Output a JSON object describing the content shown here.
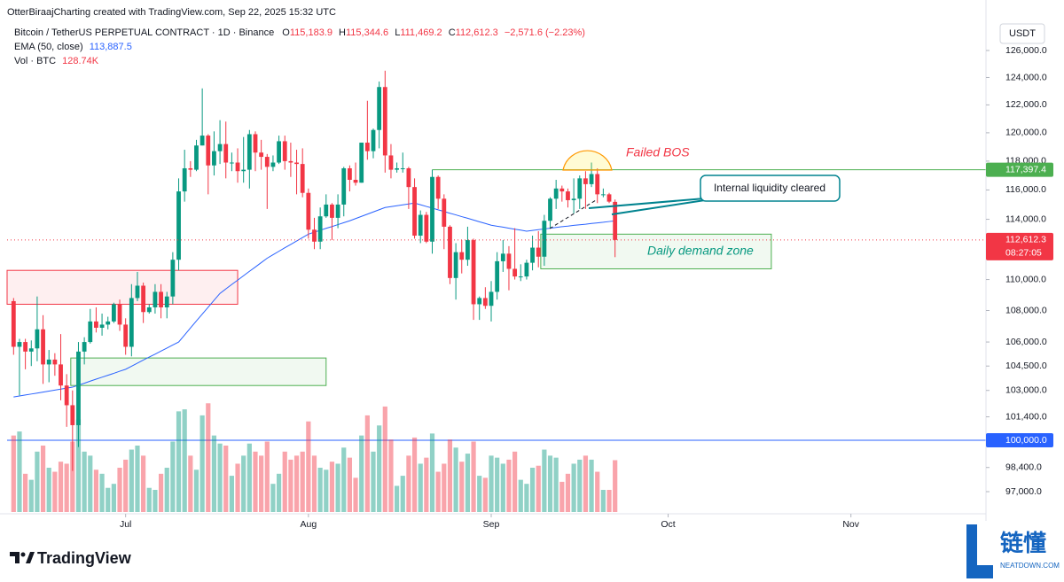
{
  "chart_data": {
    "type": "candlestick",
    "credit": "OtterBiraajCharting created with TradingView.com, Sep 22, 2025 15:32 UTC",
    "title": "Bitcoin / TetherUS PERPETUAL CONTRACT · 1D · Binance",
    "currency": "USDT",
    "legend_ohlc": [
      {
        "key": "O",
        "label": "115,183.9"
      },
      {
        "key": "H",
        "label": "115,344.6"
      },
      {
        "key": "L",
        "label": "111,469.2"
      },
      {
        "key": "C",
        "label": "112,612.3"
      }
    ],
    "change_label": "−2,571.6 (−2.23%)",
    "up_color": "#089981",
    "down_color": "#f23645",
    "log_scale": true,
    "ylim": [
      95735,
      127800
    ],
    "yticks": [
      {
        "value": 126000,
        "label": "126,000.0"
      },
      {
        "value": 124000,
        "label": "124,000.0"
      },
      {
        "value": 122000,
        "label": "122,000.0"
      },
      {
        "value": 120000,
        "label": "120,000.0"
      },
      {
        "value": 118000,
        "label": "118,000.0"
      },
      {
        "value": 116000,
        "label": "116,000.0"
      },
      {
        "value": 114000,
        "label": "114,000.0"
      },
      {
        "value": 110000,
        "label": "110,000.0"
      },
      {
        "value": 108000,
        "label": "108,000.0"
      },
      {
        "value": 106000,
        "label": "106,000.0"
      },
      {
        "value": 104500,
        "label": "104,500.0"
      },
      {
        "value": 103000,
        "label": "103,000.0"
      },
      {
        "value": 101400,
        "label": "101,400.0"
      },
      {
        "value": 98400,
        "label": "98,400.0"
      },
      {
        "value": 97000,
        "label": "97,000.0"
      }
    ],
    "xlim": [
      -1.1,
      164.6
    ],
    "xticks": [
      {
        "value": 19,
        "label": "Jul"
      },
      {
        "value": 50,
        "label": "Aug"
      },
      {
        "value": 81,
        "label": "Sep"
      },
      {
        "value": 111,
        "label": "Oct"
      },
      {
        "value": 142,
        "label": "Nov"
      }
    ],
    "open": [
      108600,
      105700,
      106000,
      105400,
      105600,
      106800,
      104600,
      104900,
      104600,
      103300,
      102100,
      100900,
      105400,
      106000,
      107300,
      106900,
      107100,
      107300,
      108400,
      107100,
      105700,
      108800,
      109600,
      107900,
      108200,
      109200,
      108200,
      108900,
      111300,
      115900,
      117500,
      117400,
      119100,
      119800,
      117700,
      118700,
      119200,
      117900,
      117900,
      117300,
      117400,
      119900,
      118600,
      118300,
      117600,
      117900,
      119400,
      118000,
      117900,
      117800,
      115800,
      113300,
      112500,
      114200,
      115000,
      114100,
      115000,
      117500,
      116700,
      116500,
      119300,
      118700,
      120200,
      123300,
      118400,
      117400,
      117500,
      117500,
      116200,
      112900,
      114300,
      112500,
      116900,
      115400,
      113500,
      110100,
      111800,
      111300,
      112600,
      108400,
      108800,
      108300,
      109200,
      111200,
      111700,
      110700,
      110200,
      110200,
      111100,
      112100,
      111500,
      113900,
      115400,
      116100,
      115900,
      115300,
      115400,
      116800,
      116400,
      117100,
      115700,
      115700,
      115183.9
    ],
    "high": [
      108800,
      106200,
      106200,
      106100,
      108900,
      107700,
      105500,
      105300,
      106500,
      104000,
      103000,
      106000,
      106300,
      108100,
      108200,
      107800,
      107600,
      108500,
      108700,
      107500,
      109700,
      110500,
      109800,
      108400,
      109700,
      109700,
      109200,
      111800,
      116800,
      118800,
      118000,
      119500,
      123200,
      119900,
      120100,
      120900,
      120800,
      118600,
      118900,
      119700,
      120200,
      120100,
      119500,
      118500,
      118400,
      119800,
      119800,
      119300,
      118800,
      118900,
      116100,
      114100,
      114800,
      115700,
      115100,
      115700,
      117600,
      117700,
      117900,
      119300,
      122300,
      120300,
      123700,
      124500,
      119200,
      117900,
      118600,
      117600,
      116800,
      114600,
      114500,
      117400,
      117000,
      115700,
      113600,
      112400,
      112600,
      113500,
      112700,
      108900,
      109500,
      109900,
      111800,
      112600,
      112200,
      113400,
      111000,
      111300,
      112900,
      113200,
      114300,
      115500,
      116700,
      116300,
      116100,
      116800,
      117000,
      117300,
      117900,
      117500,
      116100,
      115800,
      115344.6
    ],
    "low": [
      105200,
      102700,
      104300,
      104500,
      104800,
      103400,
      103500,
      103900,
      102400,
      100800,
      98200,
      99600,
      104600,
      105900,
      106600,
      106400,
      106800,
      107200,
      106700,
      105200,
      105100,
      108600,
      107200,
      107800,
      107800,
      107500,
      107500,
      108400,
      110600,
      115200,
      116900,
      117300,
      119100,
      115700,
      117000,
      117800,
      116800,
      117300,
      116500,
      116500,
      116100,
      117300,
      117400,
      114700,
      117300,
      117800,
      117400,
      116900,
      115700,
      115500,
      112700,
      112000,
      112000,
      114100,
      112600,
      113400,
      114200,
      115900,
      116300,
      116500,
      118100,
      118200,
      118900,
      117200,
      116800,
      117200,
      117200,
      114700,
      112700,
      112400,
      112400,
      111700,
      114700,
      112000,
      109700,
      108700,
      110400,
      110900,
      107400,
      107400,
      108100,
      107300,
      108700,
      110500,
      109300,
      110000,
      109900,
      110000,
      110600,
      110800,
      110900,
      113400,
      114700,
      115200,
      114800,
      114400,
      114700,
      114700,
      116200,
      115100,
      115500,
      115100,
      111469.2
    ],
    "close": [
      105700,
      106000,
      105400,
      105600,
      106800,
      104600,
      104900,
      104600,
      103300,
      102100,
      100900,
      105400,
      106000,
      107300,
      106900,
      107100,
      107300,
      108400,
      107100,
      105700,
      108800,
      109600,
      107900,
      108200,
      109200,
      108200,
      108900,
      111300,
      115900,
      117500,
      117400,
      119100,
      119800,
      117700,
      118700,
      119200,
      117900,
      117900,
      117300,
      117400,
      119900,
      118600,
      118300,
      117600,
      117900,
      119400,
      118000,
      117900,
      117800,
      115800,
      113300,
      112500,
      114200,
      115000,
      114100,
      115000,
      117500,
      116700,
      116500,
      119300,
      118700,
      120200,
      123300,
      118400,
      117400,
      117500,
      117500,
      116200,
      112900,
      114300,
      112500,
      116900,
      115400,
      113500,
      110100,
      111800,
      111300,
      112600,
      108400,
      108800,
      108300,
      109200,
      111200,
      111700,
      110700,
      110200,
      110200,
      111100,
      112100,
      111500,
      113900,
      115400,
      116100,
      115900,
      115300,
      115400,
      116800,
      116400,
      117100,
      115700,
      115700,
      115200,
      112612.3
    ],
    "ema": {
      "name": "EMA (50, close)",
      "color": "#2962ff",
      "value_label": "113,887.5",
      "values": [
        102600,
        102660,
        102720,
        102780,
        102840,
        102900,
        102960,
        103020,
        103080,
        103140,
        103200,
        103320,
        103440,
        103570,
        103690,
        103810,
        103930,
        104050,
        104180,
        104300,
        104490,
        104680,
        104870,
        105060,
        105240,
        105430,
        105620,
        105810,
        106000,
        106440,
        106890,
        107330,
        107770,
        108210,
        108660,
        109100,
        109390,
        109680,
        109960,
        110250,
        110540,
        110820,
        111110,
        111400,
        111630,
        111860,
        112090,
        112310,
        112540,
        112770,
        113000,
        113130,
        113260,
        113390,
        113510,
        113640,
        113770,
        113900,
        114050,
        114200,
        114350,
        114500,
        114650,
        114800,
        114860,
        114920,
        114980,
        115040,
        115100,
        114990,
        114870,
        114760,
        114640,
        114530,
        114410,
        114300,
        114180,
        114070,
        113950,
        113830,
        113720,
        113600,
        113530,
        113470,
        113400,
        113330,
        113270,
        113200,
        113250,
        113300,
        113350,
        113400,
        113450,
        113500,
        113540,
        113590,
        113630,
        113670,
        113720,
        113760,
        113800,
        113850,
        113887.5
      ]
    },
    "volume": {
      "name": "Vol · BTC",
      "value_label": "128.74K",
      "lim": [
        0,
        275
      ],
      "up_color": "rgba(8,153,129,0.45)",
      "down_color": "rgba(242,54,69,0.45)",
      "values": [
        190,
        200,
        95,
        80,
        150,
        165,
        110,
        100,
        125,
        120,
        175,
        230,
        150,
        140,
        105,
        95,
        60,
        70,
        110,
        130,
        155,
        165,
        140,
        60,
        55,
        95,
        110,
        175,
        250,
        255,
        140,
        105,
        240,
        270,
        190,
        170,
        165,
        90,
        120,
        140,
        170,
        150,
        140,
        175,
        70,
        95,
        150,
        130,
        140,
        150,
        225,
        140,
        110,
        105,
        125,
        120,
        160,
        135,
        85,
        190,
        240,
        150,
        215,
        262,
        180,
        65,
        90,
        140,
        185,
        120,
        135,
        195,
        100,
        120,
        180,
        160,
        125,
        145,
        175,
        90,
        85,
        140,
        135,
        120,
        130,
        150,
        80,
        70,
        110,
        115,
        155,
        140,
        135,
        75,
        95,
        120,
        130,
        140,
        130,
        100,
        55,
        55,
        128.74
      ]
    },
    "levels": [
      {
        "value": 117397.4,
        "label": "117,397.4",
        "from": 71,
        "color": "#4caf50"
      },
      {
        "value": 100000,
        "label": "100,000.0",
        "from": -1.1,
        "color": "#2962ff"
      }
    ],
    "last_price": {
      "label": "112,612.3",
      "countdown": "08:27:05",
      "color": "#f23645"
    },
    "zones": [
      {
        "from": -1.1,
        "to": 38,
        "range": [
          108400,
          110600
        ],
        "color": "#f23645"
      },
      {
        "from": 9.7,
        "to": 53,
        "range": [
          103300,
          105000
        ],
        "color": "#4caf50"
      },
      {
        "from": 89.4,
        "to": 128.5,
        "range": [
          110700,
          113000
        ],
        "color": "#4caf50",
        "label": "Daily demand zone"
      }
    ],
    "annotations": {
      "failed_bos": "Failed BOS",
      "callout": "Internal liquidity cleared"
    }
  },
  "footer": {
    "brand": "TradingView"
  },
  "watermark": {
    "title": "链懂",
    "site": "NEATDOWN.COM"
  }
}
